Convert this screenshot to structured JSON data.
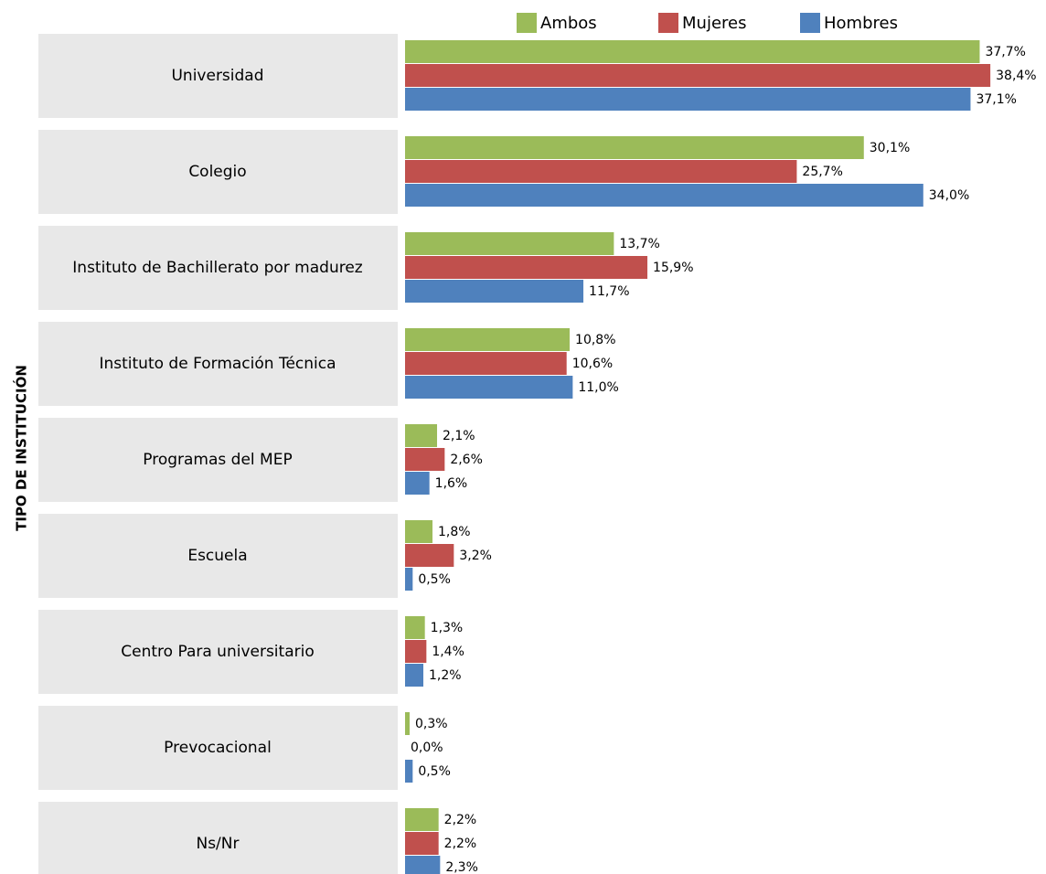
{
  "chart_data": {
    "type": "bar",
    "orientation": "horizontal",
    "y_axis_label": "TIPO DE INSTITUCIÓN",
    "categories": [
      "Universidad",
      "Colegio",
      "Instituto de Bachillerato por madurez",
      "Instituto de Formación Técnica",
      "Programas del MEP",
      "Escuela",
      "Centro Para universitario",
      "Prevocacional",
      "Ns/Nr"
    ],
    "series": [
      {
        "name": "Ambos",
        "color": "#9bbb59",
        "values": [
          37.7,
          30.1,
          13.7,
          10.8,
          2.1,
          1.8,
          1.3,
          0.3,
          2.2
        ],
        "value_labels": [
          "37,7%",
          "30,1%",
          "13,7%",
          "10,8%",
          "2,1%",
          "1,8%",
          "1,3%",
          "0,3%",
          "2,2%"
        ]
      },
      {
        "name": "Mujeres",
        "color": "#c0504d",
        "values": [
          38.4,
          25.7,
          15.9,
          10.6,
          2.6,
          3.2,
          1.4,
          0.0,
          2.2
        ],
        "value_labels": [
          "38,4%",
          "25,7%",
          "15,9%",
          "10,6%",
          "2,6%",
          "3,2%",
          "1,4%",
          "0,0%",
          "2,2%"
        ]
      },
      {
        "name": "Hombres",
        "color": "#4f81bd",
        "values": [
          37.1,
          34.0,
          11.7,
          11.0,
          1.6,
          0.5,
          1.2,
          0.5,
          2.3
        ],
        "value_labels": [
          "37,1%",
          "34,0%",
          "11,7%",
          "11,0%",
          "1,6%",
          "0,5%",
          "1,2%",
          "0,5%",
          "2,3%"
        ]
      }
    ]
  }
}
